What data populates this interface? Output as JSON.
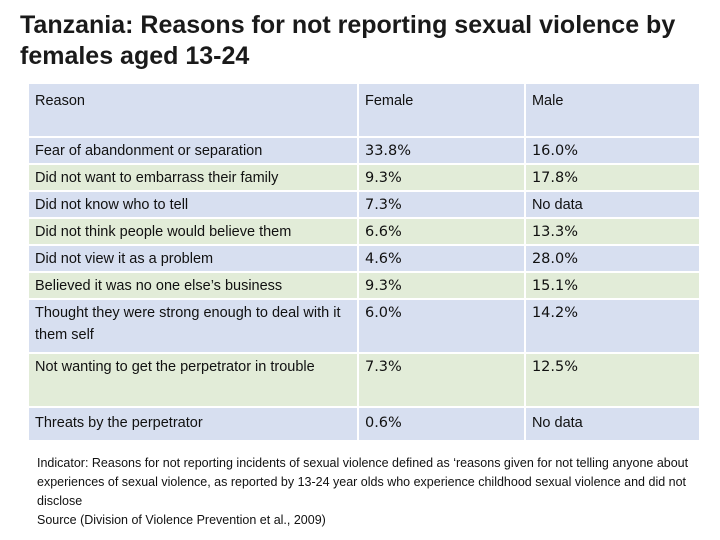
{
  "title": "Tanzania: Reasons for not reporting sexual violence by females aged 13-24",
  "table": {
    "headers": {
      "reason": "Reason",
      "female": "Female",
      "male": "Male"
    },
    "rows": [
      {
        "reason": "Fear of abandonment or separation",
        "female": "33.8%",
        "male": "16.0%"
      },
      {
        "reason": "Did not want to embarrass their family",
        "female": "9.3%",
        "male": "17.8%"
      },
      {
        "reason": "Did not know who to tell",
        "female": "7.3%",
        "male": "No data"
      },
      {
        "reason": "Did not think people would believe them",
        "female": "6.6%",
        "male": "13.3%"
      },
      {
        "reason": "Did not view it as a problem",
        "female": "4.6%",
        "male": "28.0%"
      },
      {
        "reason": "Believed it was no one else’s business",
        "female": "9.3%",
        "male": "15.1%"
      },
      {
        "reason": "Thought they were strong enough to deal with it them self",
        "female": "6.0%",
        "male": "14.2%"
      },
      {
        "reason": "Not wanting to get the perpetrator in trouble",
        "female": "7.3%",
        "male": "12.5%"
      },
      {
        "reason": "Threats by the perpetrator",
        "female": "0.6%",
        "male": "No data"
      }
    ]
  },
  "footnote": {
    "indicator": "Indicator: Reasons for not reporting incidents of sexual violence defined as ‘reasons given for not telling anyone about experiences of sexual violence, as reported by 13-24 year olds who experience childhood sexual violence and did not disclose",
    "source": "Source (Division of Violence Prevention et al., 2009)"
  }
}
